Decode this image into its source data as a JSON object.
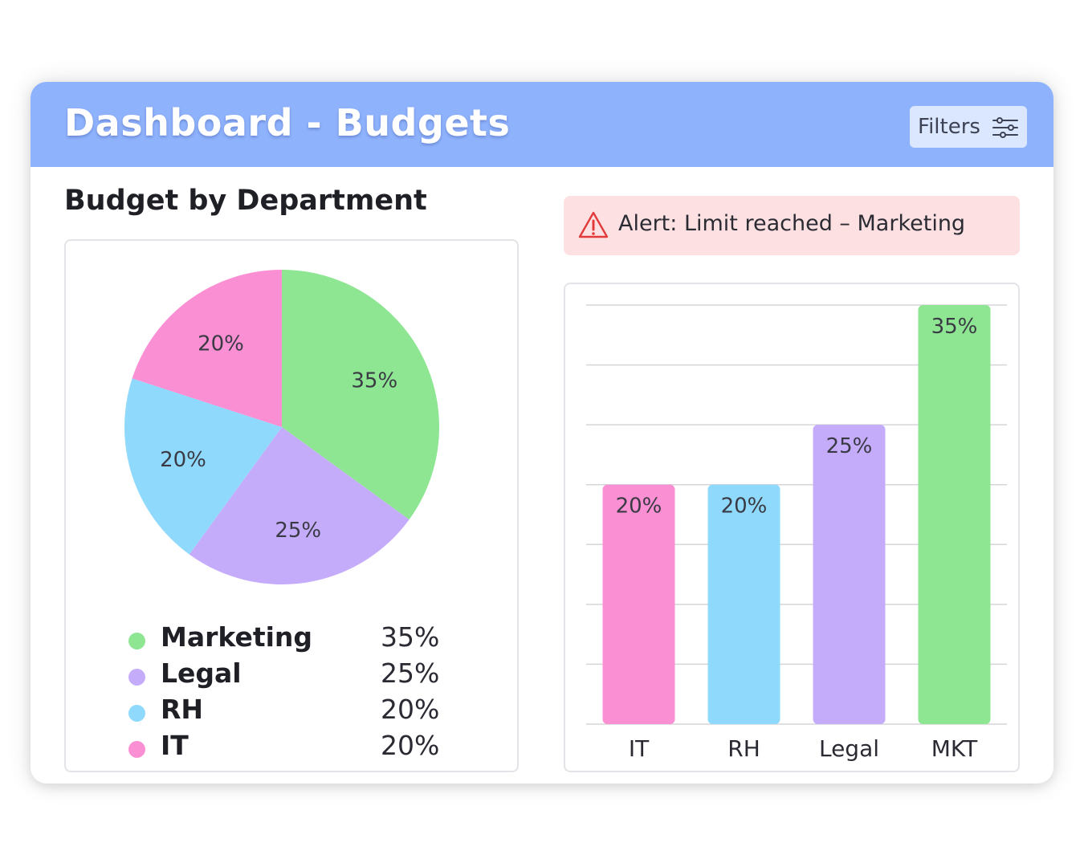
{
  "header": {
    "title": "Dashboard - Budgets",
    "filters_label": "Filters",
    "filters_icon": "sliders-icon"
  },
  "section_title": "Budget by Department",
  "alert": {
    "icon": "warning-triangle-icon",
    "text": "Alert: Limit reached – Marketing"
  },
  "legend": [
    {
      "name": "Marketing",
      "value": "35%",
      "color": "#8ee592"
    },
    {
      "name": "Legal",
      "value": "25%",
      "color": "#c5acfb"
    },
    {
      "name": "RH",
      "value": "20%",
      "color": "#8fd9fc"
    },
    {
      "name": "IT",
      "value": "20%",
      "color": "#fb8fd3"
    }
  ],
  "colors": {
    "header_bg": "#8fb2fc",
    "alert_bg": "#fde0e2",
    "alert_icon": "#e23a3a"
  },
  "chart_data": [
    {
      "type": "pie",
      "slices": [
        {
          "category": "Marketing",
          "value": 35,
          "label": "35%",
          "color": "#8ee592"
        },
        {
          "category": "Legal",
          "value": 25,
          "label": "25%",
          "color": "#c5acfb"
        },
        {
          "category": "RH",
          "value": 20,
          "label": "20%",
          "color": "#8fd9fc"
        },
        {
          "category": "IT",
          "value": 20,
          "label": "20%",
          "color": "#fb8fd3"
        }
      ]
    },
    {
      "type": "bar",
      "categories": [
        "IT",
        "RH",
        "Legal",
        "MKT"
      ],
      "values": [
        20,
        20,
        25,
        35
      ],
      "labels": [
        "20%",
        "20%",
        "25%",
        "35%"
      ],
      "colors": [
        "#fb8fd3",
        "#8fd9fc",
        "#c5acfb",
        "#8ee592"
      ],
      "ylim": [
        0,
        35
      ],
      "grid": true
    }
  ]
}
